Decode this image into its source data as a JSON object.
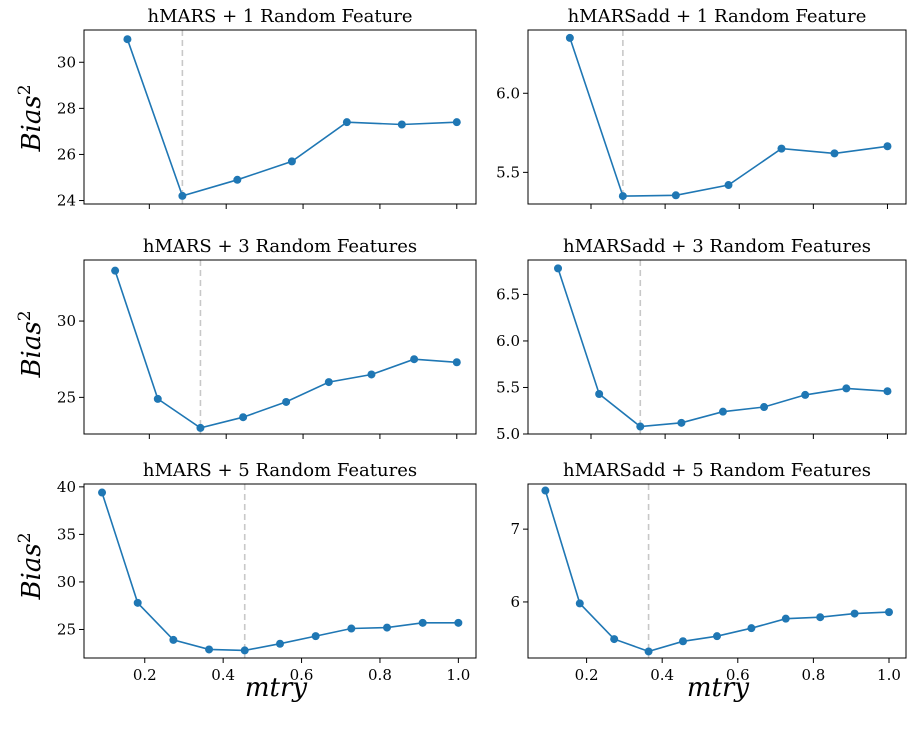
{
  "labels": {
    "ylabel": "Bias",
    "ylabel_sup": "2",
    "xlabel": "mtry"
  },
  "colors": {
    "series": "#1f77b4",
    "reference_line": "#c8c8c8"
  },
  "chart_data": [
    {
      "type": "line",
      "title": "hMARS + 1 Random Feature",
      "x": [
        0.143,
        0.286,
        0.429,
        0.571,
        0.714,
        0.857,
        1.0
      ],
      "y": [
        31.0,
        24.2,
        24.9,
        25.7,
        27.4,
        27.3,
        27.4
      ],
      "vline": 0.286,
      "xlim": [
        0.03,
        1.05
      ],
      "ylim": [
        23.85,
        31.4
      ],
      "yticks": [
        24,
        26,
        28,
        30
      ],
      "ytick_labels": [
        "24",
        "26",
        "28",
        "30"
      ],
      "xticks": [
        0.2,
        0.4,
        0.6,
        0.8,
        1.0
      ],
      "xtick_labels": []
    },
    {
      "type": "line",
      "title": "hMARSadd + 1 Random Feature",
      "x": [
        0.143,
        0.286,
        0.429,
        0.571,
        0.714,
        0.857,
        1.0
      ],
      "y": [
        6.35,
        5.35,
        5.355,
        5.42,
        5.65,
        5.62,
        5.665
      ],
      "vline": 0.286,
      "xlim": [
        0.03,
        1.05
      ],
      "ylim": [
        5.3,
        6.4
      ],
      "yticks": [
        5.5,
        6.0
      ],
      "ytick_labels": [
        "5.5",
        "6.0"
      ],
      "xticks": [
        0.2,
        0.4,
        0.6,
        0.8,
        1.0
      ],
      "xtick_labels": []
    },
    {
      "type": "line",
      "title": "hMARS + 3 Random Features",
      "x": [
        0.111,
        0.222,
        0.333,
        0.444,
        0.556,
        0.667,
        0.778,
        0.889,
        1.0
      ],
      "y": [
        33.3,
        24.9,
        23.0,
        23.7,
        24.7,
        26.0,
        26.5,
        27.5,
        27.3
      ],
      "vline": 0.333,
      "xlim": [
        0.03,
        1.05
      ],
      "ylim": [
        22.6,
        34.0
      ],
      "yticks": [
        25,
        30
      ],
      "ytick_labels": [
        "25",
        "30"
      ],
      "xticks": [
        0.2,
        0.4,
        0.6,
        0.8,
        1.0
      ],
      "xtick_labels": []
    },
    {
      "type": "line",
      "title": "hMARSadd + 3 Random Features",
      "x": [
        0.111,
        0.222,
        0.333,
        0.444,
        0.556,
        0.667,
        0.778,
        0.889,
        1.0
      ],
      "y": [
        6.78,
        5.43,
        5.08,
        5.12,
        5.24,
        5.29,
        5.42,
        5.49,
        5.46
      ],
      "vline": 0.333,
      "xlim": [
        0.03,
        1.05
      ],
      "ylim": [
        5.0,
        6.87
      ],
      "yticks": [
        5.0,
        5.5,
        6.0,
        6.5
      ],
      "ytick_labels": [
        "5.0",
        "5.5",
        "6.0",
        "6.5"
      ],
      "xticks": [
        0.2,
        0.4,
        0.6,
        0.8,
        1.0
      ],
      "xtick_labels": []
    },
    {
      "type": "line",
      "title": "hMARS + 5 Random Features",
      "x": [
        0.091,
        0.182,
        0.273,
        0.364,
        0.455,
        0.545,
        0.636,
        0.727,
        0.818,
        0.909,
        1.0
      ],
      "y": [
        39.4,
        27.8,
        23.9,
        22.9,
        22.8,
        23.5,
        24.3,
        25.1,
        25.2,
        25.7,
        25.7
      ],
      "vline": 0.455,
      "xlim": [
        0.045,
        1.045
      ],
      "ylim": [
        22.0,
        40.3
      ],
      "yticks": [
        25,
        30,
        35,
        40
      ],
      "ytick_labels": [
        "25",
        "30",
        "35",
        "40"
      ],
      "xticks": [
        0.2,
        0.4,
        0.6,
        0.8,
        1.0
      ],
      "xtick_labels": [
        "0.2",
        "0.4",
        "0.6",
        "0.8",
        "1.0"
      ]
    },
    {
      "type": "line",
      "title": "hMARSadd + 5 Random Features",
      "x": [
        0.091,
        0.182,
        0.273,
        0.364,
        0.455,
        0.545,
        0.636,
        0.727,
        0.818,
        0.909,
        1.0
      ],
      "y": [
        7.53,
        5.98,
        5.49,
        5.32,
        5.46,
        5.53,
        5.64,
        5.77,
        5.79,
        5.84,
        5.86
      ],
      "vline": 0.364,
      "xlim": [
        0.045,
        1.045
      ],
      "ylim": [
        5.23,
        7.62
      ],
      "yticks": [
        6,
        7
      ],
      "ytick_labels": [
        "6",
        "7"
      ],
      "xticks": [
        0.2,
        0.4,
        0.6,
        0.8,
        1.0
      ],
      "xtick_labels": [
        "0.2",
        "0.4",
        "0.6",
        "0.8",
        "1.0"
      ]
    }
  ]
}
